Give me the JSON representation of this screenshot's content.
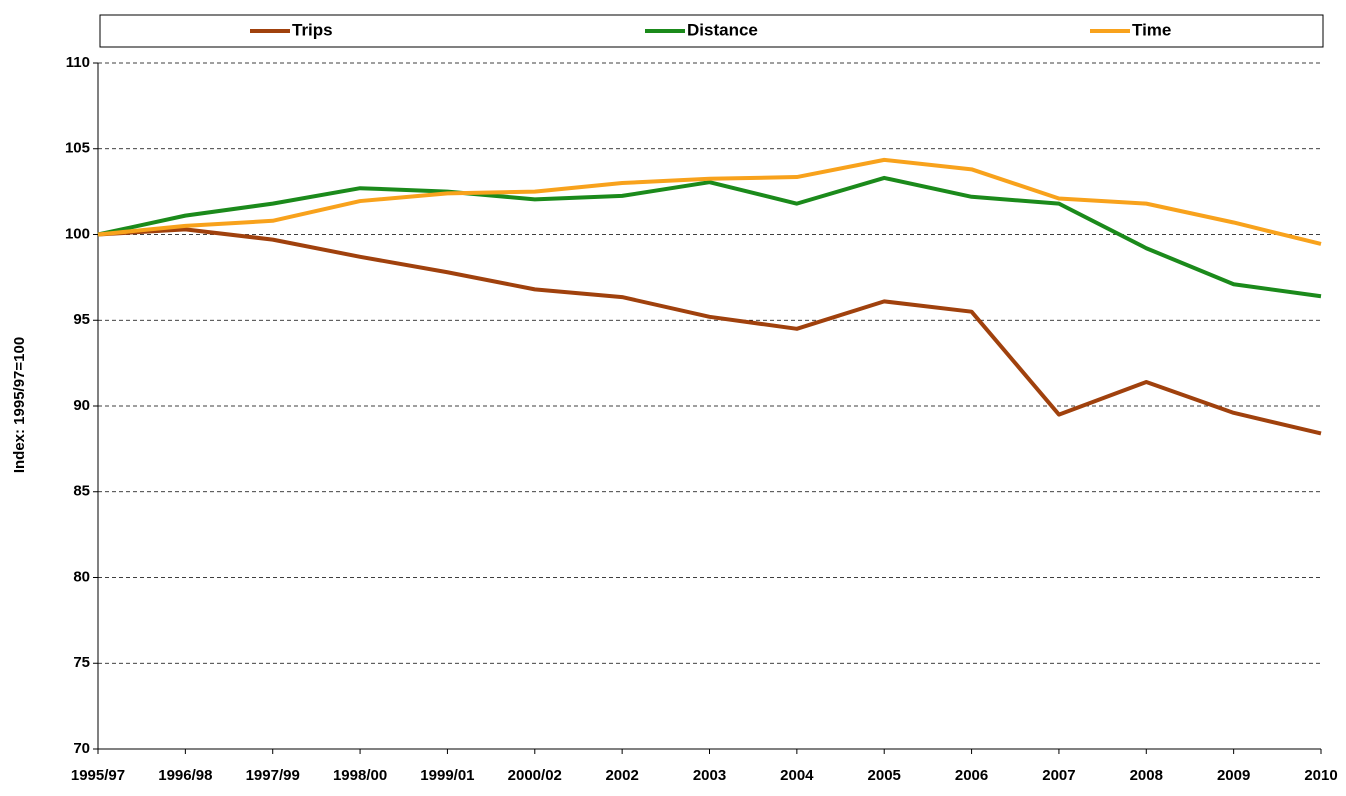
{
  "chart_data": {
    "type": "line",
    "y_label": "Index: 1995/97=100",
    "categories": [
      "1995/97",
      "1996/98",
      "1997/99",
      "1998/00",
      "1999/01",
      "2000/02",
      "2002",
      "2003",
      "2004",
      "2005",
      "2006",
      "2007",
      "2008",
      "2009",
      "2010"
    ],
    "series": [
      {
        "name": "Trips",
        "color": "#a0410d",
        "values": [
          100,
          100.3,
          99.7,
          98.7,
          97.8,
          96.8,
          96.35,
          95.2,
          94.5,
          96.1,
          95.5,
          89.5,
          91.4,
          89.6,
          88.4
        ]
      },
      {
        "name": "Distance",
        "color": "#1b8a1b",
        "values": [
          100,
          101.1,
          101.8,
          102.7,
          102.5,
          102.05,
          102.25,
          103.05,
          101.8,
          103.3,
          102.2,
          101.8,
          99.2,
          97.1,
          96.4
        ]
      },
      {
        "name": "Time",
        "color": "#f8a21c",
        "values": [
          100,
          100.5,
          100.8,
          101.95,
          102.4,
          102.5,
          103.0,
          103.25,
          103.35,
          104.35,
          103.8,
          102.1,
          101.8,
          100.7,
          99.45
        ]
      }
    ],
    "ylim": [
      70,
      110
    ],
    "yticks": [
      70,
      75,
      80,
      85,
      90,
      95,
      100,
      105,
      110
    ],
    "grid": true,
    "legend": "top"
  }
}
